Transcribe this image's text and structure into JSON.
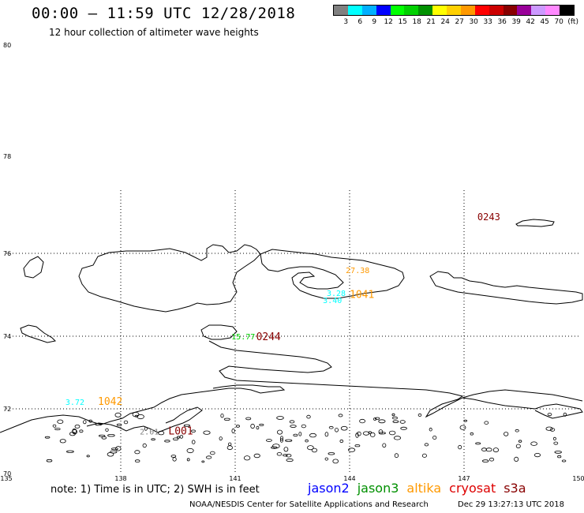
{
  "header": {
    "title": "00:00 – 11:59 UTC 12/28/2018",
    "subtitle": "12 hour collection of altimeter wave heights"
  },
  "legend": {
    "colors": [
      "#808080",
      "#00ffff",
      "#00b0ff",
      "#0000ff",
      "#00ff00",
      "#00d000",
      "#009000",
      "#ffff00",
      "#ffd000",
      "#ff9900",
      "#ff0000",
      "#cc0000",
      "#880000",
      "#990099",
      "#cc99ff",
      "#ff88ff",
      "#000000"
    ],
    "labels": [
      "3",
      "6",
      "9",
      "12",
      "15",
      "18",
      "21",
      "24",
      "27",
      "30",
      "33",
      "36",
      "39",
      "42",
      "45",
      "70",
      "(ft)"
    ]
  },
  "axes": {
    "lat_ticks": [
      "80",
      "78",
      "76",
      "74",
      "72",
      "70"
    ],
    "lon_ticks": [
      "135",
      "138",
      "141",
      "144",
      "147",
      "150"
    ]
  },
  "annotations": [
    {
      "text": "0243",
      "color": "#880000",
      "size": 12,
      "lon": 147.35,
      "lat": 76.75
    },
    {
      "text": "27.38",
      "color": "#ff9900",
      "size": 10,
      "lon": 143.9,
      "lat": 75.6
    },
    {
      "text": "3.28",
      "color": "#00ffff",
      "size": 10,
      "lon": 143.4,
      "lat": 75.05
    },
    {
      "text": "3.40",
      "color": "#00ffff",
      "size": 10,
      "lon": 143.3,
      "lat": 74.88
    },
    {
      "text": "1041",
      "color": "#ff9900",
      "size": 13,
      "lon": 144.0,
      "lat": 75.0
    },
    {
      "text": "15.77",
      "color": "#00d000",
      "size": 10,
      "lon": 140.9,
      "lat": 74.0
    },
    {
      "text": "0244",
      "color": "#880000",
      "size": 13,
      "lon": 141.55,
      "lat": 73.98
    },
    {
      "text": "3.72",
      "color": "#00ffff",
      "size": 10,
      "lon": 136.55,
      "lat": 72.2
    },
    {
      "text": "1042",
      "color": "#ff9900",
      "size": 13,
      "lon": 137.4,
      "lat": 72.2
    },
    {
      "text": "2.01",
      "color": "#808080",
      "size": 10,
      "lon": 138.5,
      "lat": 71.3
    },
    {
      "text": "L001",
      "color": "#880000",
      "size": 13,
      "lon": 139.25,
      "lat": 71.3
    }
  ],
  "footer": {
    "note": "note: 1) Time is in UTC; 2) SWH is in feet",
    "satellites": [
      {
        "name": "jason2",
        "color": "#0000ff"
      },
      {
        "name": "jason3",
        "color": "#009000"
      },
      {
        "name": "altika",
        "color": "#ff9900"
      },
      {
        "name": "cryosat",
        "color": "#dd0000"
      },
      {
        "name": "s3a",
        "color": "#880000"
      }
    ],
    "credit": "NOAA/NESDIS Center for Satellite Applications and Research",
    "timestamp": "Dec 29 13:27:13 UTC 2018"
  }
}
